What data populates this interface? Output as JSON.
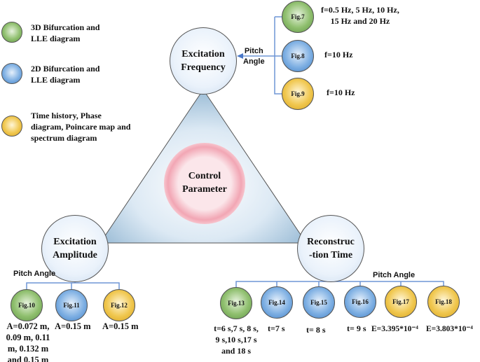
{
  "legend": [
    {
      "label_1": "3D Bifurcation and",
      "label_2": "LLE diagram",
      "color": "#7db35e"
    },
    {
      "label_1": "2D Bifurcation and",
      "label_2": "LLE diagram",
      "color": "#5b9ad8"
    },
    {
      "label_1": "Time history, Phase",
      "label_2": "diagram, Poincare map and",
      "label_3": "spectrum diagram",
      "color": "#e8b932"
    }
  ],
  "center": {
    "l1": "Control",
    "l2": "Parameter"
  },
  "frequency": {
    "l1": "Excitation",
    "l2": "Frequency",
    "pitch_1": "Pitch",
    "pitch_2": "Angle",
    "figs": [
      {
        "label": "Fig.7",
        "t1": "f=0.5 Hz, 5 Hz, 10 Hz,",
        "t2": "15 Hz and 20 Hz"
      },
      {
        "label": "Fig.8",
        "t1": "f=10 Hz"
      },
      {
        "label": "Fig.9",
        "t1": "f=10 Hz"
      }
    ]
  },
  "amplitude": {
    "l1": "Excitation",
    "l2": "Amplitude",
    "pitch": "Pitch Angle",
    "figs": [
      {
        "label": "Fig.10",
        "t1": "A=0.072 m,",
        "t2": "0.09 m, 0.11",
        "t3": "m, 0.132 m",
        "t4": "and 0.15 m"
      },
      {
        "label": "Fig.11",
        "t1": "A=0.15 m"
      },
      {
        "label": "Fig.12",
        "t1": "A=0.15 m"
      }
    ]
  },
  "reconstruction": {
    "l1": "Reconstruc",
    "l2": "-tion Time",
    "pitch": "Pitch Angle",
    "figs": [
      {
        "label": "Fig.13",
        "t1": "t=6 s,7 s, 8 s,",
        "t2": "9 s,10 s,17 s",
        "t3": "and 18 s"
      },
      {
        "label": "Fig.14",
        "t1": "t=7 s"
      },
      {
        "label": "Fig.15",
        "t1": "t= 8 s"
      },
      {
        "label": "Fig.16",
        "t1": "t= 9 s"
      },
      {
        "label": "Fig.17",
        "t1": "E=3.395*10⁻⁴"
      },
      {
        "label": "Fig.18",
        "t1": "E=3.803*10⁻⁴"
      }
    ]
  }
}
